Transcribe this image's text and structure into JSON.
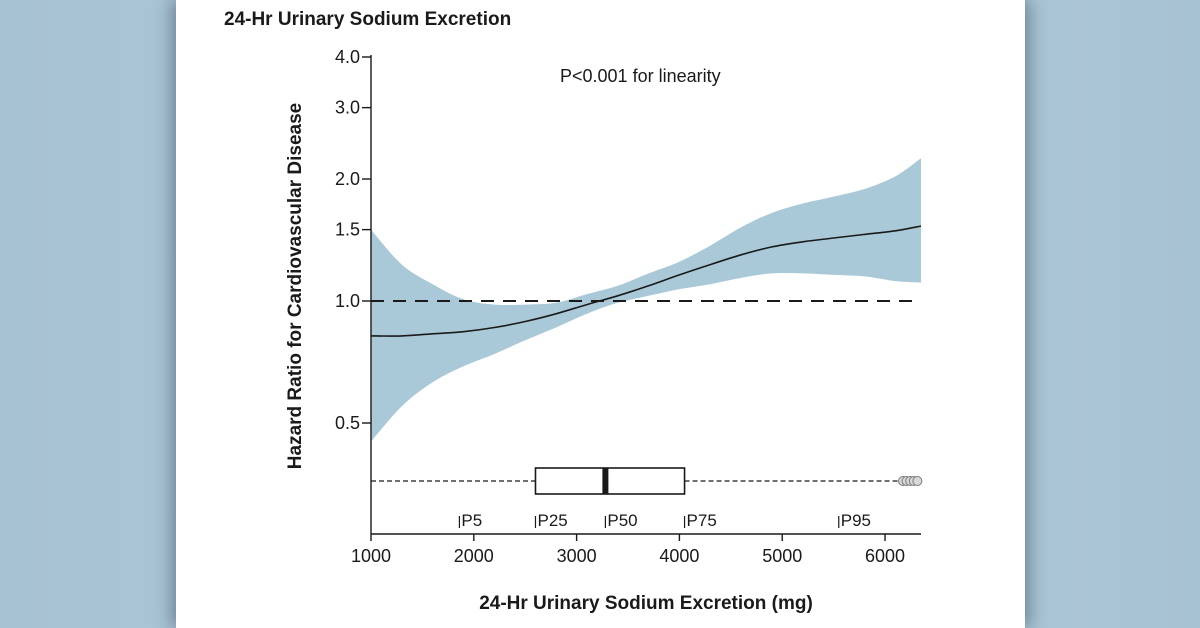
{
  "chart_data": {
    "type": "line",
    "title": "24-Hr Urinary Sodium Excretion",
    "xlabel": "24-Hr Urinary Sodium Excretion (mg)",
    "ylabel": "Hazard Ratio for Cardiovascular Disease",
    "y_scale": "log",
    "xlim": [
      1000,
      6350
    ],
    "ylim": [
      0.3,
      4.0
    ],
    "x_ticks": [
      1000,
      2000,
      3000,
      4000,
      5000,
      6000
    ],
    "x_tick_labels": [
      "1000",
      "2000",
      "3000",
      "4000",
      "5000",
      "6000"
    ],
    "y_ticks": [
      0.5,
      1.0,
      1.5,
      2.0,
      3.0,
      4.0
    ],
    "y_tick_labels": [
      "0.5",
      "1.0",
      "1.5",
      "2.0",
      "3.0",
      "4.0"
    ],
    "annotation": "P<0.001 for linearity",
    "reference_line": {
      "y": 1.0,
      "style": "dashed"
    },
    "colors": {
      "ci_band": "#a9c9d8",
      "line": "#1a1a1a"
    },
    "series": [
      {
        "x": [
          1000,
          1300,
          1600,
          1900,
          2200,
          2500,
          2800,
          3100,
          3400,
          3700,
          4000,
          4300,
          4600,
          4900,
          5200,
          5500,
          5800,
          6100,
          6350
        ],
        "y": [
          0.82,
          0.82,
          0.83,
          0.84,
          0.86,
          0.89,
          0.93,
          0.98,
          1.03,
          1.09,
          1.16,
          1.23,
          1.3,
          1.36,
          1.4,
          1.43,
          1.46,
          1.49,
          1.53
        ],
        "lower": [
          0.45,
          0.55,
          0.63,
          0.69,
          0.74,
          0.8,
          0.86,
          0.93,
          0.99,
          1.03,
          1.07,
          1.1,
          1.14,
          1.17,
          1.17,
          1.16,
          1.15,
          1.12,
          1.11
        ],
        "upper": [
          1.5,
          1.23,
          1.1,
          1.01,
          0.98,
          0.98,
          0.99,
          1.04,
          1.09,
          1.17,
          1.25,
          1.37,
          1.52,
          1.65,
          1.74,
          1.81,
          1.89,
          2.03,
          2.25
        ]
      }
    ],
    "boxplot": {
      "p25": 2600,
      "median": 3280,
      "p75": 4050,
      "whisker_low": 1000,
      "whisker_high": 6350
    },
    "percentile_labels": [
      {
        "label": "P5",
        "x": 1860
      },
      {
        "label": "P25",
        "x": 2600
      },
      {
        "label": "P50",
        "x": 3280
      },
      {
        "label": "P75",
        "x": 4050
      },
      {
        "label": "P95",
        "x": 5550
      }
    ]
  }
}
